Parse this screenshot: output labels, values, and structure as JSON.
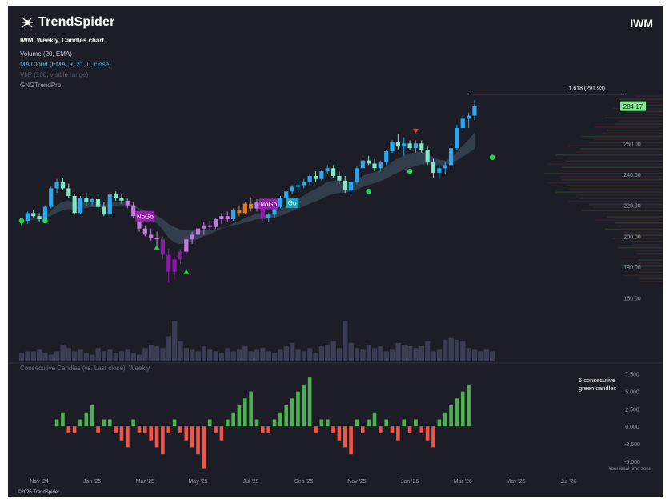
{
  "brand": {
    "name": "TrendSpider",
    "symbol": "IWM",
    "copyright": "©2026 TrendSpider"
  },
  "headers": {
    "title": "IWM, Weekly, Candles chart",
    "volume": "Volume (20, EMA)",
    "ma_cloud": "MA Cloud (EMA, 9, 21, 0, close)",
    "vbp": "VbP (100, visible range)",
    "gng": "GNGTrendPro"
  },
  "colors": {
    "background": "#1c1d27",
    "up_candle": "#29a8f0",
    "down_candle": "#7fe6c8",
    "nogo_candle": "#c27be0",
    "nogo_dark": "#8a1aa8",
    "orange_candle": "#e07a1f",
    "cloud": "#3a4a5a",
    "cloud_red": "#5a2a30",
    "green_bar": "#4caf50",
    "red_bar": "#f05545",
    "last_price_bg": "#7dee8c"
  },
  "chart_data": [
    {
      "type": "candlestick",
      "title": "IWM, Weekly, Candles chart",
      "ylim": [
        150,
        300
      ],
      "yticks": [
        160,
        180,
        200,
        220,
        240,
        260
      ],
      "ytick_labels": [
        "160.00",
        "180.00",
        "200.00",
        "220.00",
        "240.00",
        "260.00"
      ],
      "last_price": 284.17,
      "last_price_label": "284.17",
      "fib_label": "1.618 (291.93)",
      "fib_value": 291.93,
      "x_labels": [
        "Nov '24",
        "Jan '25",
        "Mar '25",
        "May '25",
        "Jul '25",
        "Sep '25",
        "Nov '25",
        "Jan '26",
        "Mar '26",
        "May '26",
        "Jul '26"
      ],
      "x_label_weeks": [
        3,
        12,
        21,
        30,
        39,
        48,
        57,
        66,
        75,
        84,
        93
      ],
      "candles": [
        [
          210,
          212,
          207,
          210,
          "down"
        ],
        [
          210,
          216,
          208,
          215,
          "up"
        ],
        [
          215,
          217,
          212,
          213,
          "down"
        ],
        [
          213,
          215,
          209,
          211,
          "down"
        ],
        [
          211,
          220,
          210,
          219,
          "up"
        ],
        [
          219,
          232,
          218,
          231,
          "up"
        ],
        [
          231,
          237,
          228,
          235,
          "up"
        ],
        [
          235,
          238,
          230,
          231,
          "down"
        ],
        [
          231,
          234,
          225,
          226,
          "down"
        ],
        [
          226,
          227,
          214,
          215,
          "down"
        ],
        [
          215,
          226,
          214,
          225,
          "up"
        ],
        [
          225,
          228,
          220,
          222,
          "down"
        ],
        [
          222,
          225,
          220,
          224,
          "up"
        ],
        [
          224,
          226,
          217,
          219,
          "down"
        ],
        [
          219,
          222,
          213,
          214,
          "down"
        ],
        [
          214,
          228,
          213,
          227,
          "up"
        ],
        [
          227,
          229,
          223,
          225,
          "down"
        ],
        [
          225,
          227,
          221,
          223,
          "down"
        ],
        [
          223,
          225,
          218,
          220,
          "nogo"
        ],
        [
          220,
          222,
          212,
          213,
          "nogo"
        ],
        [
          213,
          216,
          203,
          205,
          "nogo"
        ],
        [
          205,
          207,
          200,
          201,
          "nogo"
        ],
        [
          201,
          205,
          197,
          199,
          "nogo"
        ],
        [
          199,
          203,
          194,
          198,
          "nogo"
        ],
        [
          198,
          200,
          185,
          188,
          "nogo_dark"
        ],
        [
          188,
          192,
          170,
          177,
          "nogo_dark"
        ],
        [
          177,
          187,
          172,
          185,
          "nogo_dark"
        ],
        [
          185,
          192,
          182,
          190,
          "nogo_dark"
        ],
        [
          190,
          200,
          188,
          198,
          "nogo"
        ],
        [
          198,
          203,
          195,
          201,
          "nogo"
        ],
        [
          201,
          207,
          199,
          205,
          "nogo"
        ],
        [
          205,
          209,
          201,
          207,
          "nogo"
        ],
        [
          207,
          210,
          204,
          206,
          "nogo"
        ],
        [
          206,
          212,
          205,
          211,
          "nogo"
        ],
        [
          211,
          215,
          208,
          213,
          "nogo"
        ],
        [
          213,
          216,
          209,
          211,
          "nogo"
        ],
        [
          211,
          218,
          210,
          217,
          "up"
        ],
        [
          217,
          220,
          213,
          215,
          "orange"
        ],
        [
          215,
          222,
          214,
          221,
          "orange"
        ],
        [
          221,
          225,
          216,
          218,
          "orange"
        ],
        [
          218,
          224,
          216,
          222,
          "nogo"
        ],
        [
          222,
          223,
          210,
          212,
          "nogo_dark"
        ],
        [
          212,
          215,
          209,
          214,
          "up"
        ],
        [
          214,
          220,
          212,
          219,
          "up"
        ],
        [
          219,
          226,
          218,
          225,
          "up"
        ],
        [
          225,
          230,
          222,
          229,
          "up"
        ],
        [
          229,
          233,
          227,
          232,
          "up"
        ],
        [
          232,
          236,
          230,
          233,
          "up"
        ],
        [
          233,
          237,
          231,
          235,
          "up"
        ],
        [
          235,
          240,
          233,
          239,
          "up"
        ],
        [
          239,
          242,
          235,
          237,
          "down"
        ],
        [
          237,
          243,
          236,
          242,
          "up"
        ],
        [
          242,
          246,
          240,
          244,
          "up"
        ],
        [
          244,
          246,
          238,
          239,
          "down"
        ],
        [
          239,
          242,
          234,
          236,
          "down"
        ],
        [
          236,
          239,
          228,
          230,
          "down"
        ],
        [
          230,
          236,
          228,
          235,
          "up"
        ],
        [
          235,
          245,
          234,
          244,
          "up"
        ],
        [
          244,
          250,
          243,
          249,
          "up"
        ],
        [
          249,
          252,
          246,
          247,
          "down"
        ],
        [
          247,
          250,
          242,
          244,
          "down"
        ],
        [
          244,
          249,
          242,
          248,
          "up"
        ],
        [
          248,
          256,
          246,
          255,
          "up"
        ],
        [
          255,
          262,
          254,
          261,
          "up"
        ],
        [
          261,
          266,
          256,
          258,
          "down"
        ],
        [
          258,
          264,
          252,
          260,
          "up"
        ],
        [
          260,
          262,
          256,
          257,
          "down"
        ],
        [
          257,
          262,
          254,
          260,
          "up"
        ],
        [
          260,
          262,
          254,
          256,
          "down"
        ],
        [
          256,
          258,
          246,
          248,
          "down"
        ],
        [
          248,
          250,
          238,
          241,
          "down"
        ],
        [
          241,
          246,
          237,
          244,
          "up"
        ],
        [
          244,
          248,
          240,
          246,
          "up"
        ],
        [
          246,
          258,
          244,
          257,
          "up"
        ],
        [
          257,
          272,
          256,
          270,
          "up"
        ],
        [
          270,
          278,
          268,
          276,
          "up"
        ],
        [
          276,
          280,
          270,
          278,
          "up"
        ],
        [
          278,
          288,
          275,
          284,
          "up"
        ]
      ],
      "signals": {
        "green_dots": [
          [
            0,
            210
          ],
          [
            4,
            210
          ],
          [
            59,
            229
          ],
          [
            66,
            242
          ],
          [
            80,
            251
          ]
        ],
        "green_triangles": [
          [
            23,
            193
          ],
          [
            28,
            177
          ]
        ],
        "red_triangles": [
          [
            67,
            268
          ]
        ],
        "nogo_labels": [
          [
            21,
            "NoGo"
          ],
          [
            42,
            "NoGo"
          ]
        ],
        "go_labels": [
          [
            46,
            "Go"
          ]
        ]
      }
    },
    {
      "type": "bar",
      "title": "Consecutive Candles (vs. Last close), Weekly",
      "ylim": [
        -6.5,
        8.5
      ],
      "yticks": [
        -5.0,
        -2.5,
        0.0,
        2.5,
        5.0,
        7.5
      ],
      "ytick_labels": [
        "-5.000",
        "-2.500",
        "0.000",
        "2.500",
        "5.000",
        "7.500"
      ],
      "values": [
        1,
        2,
        -1,
        -1,
        1,
        2,
        3,
        -1,
        1,
        1,
        -1,
        -2,
        -3,
        1,
        -1,
        -1,
        -2,
        -3,
        -4,
        -1,
        1,
        -1,
        -2,
        -3,
        -4,
        -6,
        1,
        -1,
        -2,
        1,
        2,
        3,
        4,
        5,
        1,
        -1,
        -1,
        1,
        2,
        3,
        4,
        5,
        6,
        7,
        -1,
        1,
        1,
        -1,
        -2,
        -3,
        -4,
        1,
        -1,
        1,
        2,
        -1,
        1,
        -1,
        -2,
        1,
        -1,
        1,
        -1,
        -2,
        -3,
        1,
        2,
        3,
        4,
        5,
        6
      ],
      "annotation": [
        "6 consecutive",
        "green candles"
      ]
    }
  ],
  "volume": [
    5,
    6,
    6,
    7,
    5,
    4,
    6,
    10,
    8,
    6,
    7,
    5,
    4,
    8,
    6,
    7,
    5,
    6,
    7,
    5,
    4,
    8,
    10,
    9,
    8,
    15,
    24,
    12,
    8,
    7,
    6,
    9,
    7,
    6,
    5,
    8,
    6,
    7,
    9,
    6,
    7,
    8,
    6,
    5,
    7,
    9,
    11,
    7,
    6,
    8,
    5,
    9,
    10,
    12,
    8,
    24,
    11,
    8,
    7,
    10,
    8,
    9,
    6,
    7,
    11,
    10,
    9,
    8,
    9,
    12,
    6,
    7,
    13,
    14,
    13,
    12,
    8,
    7,
    6,
    7,
    6
  ],
  "footer": {
    "timezone": "Your local time zone"
  }
}
